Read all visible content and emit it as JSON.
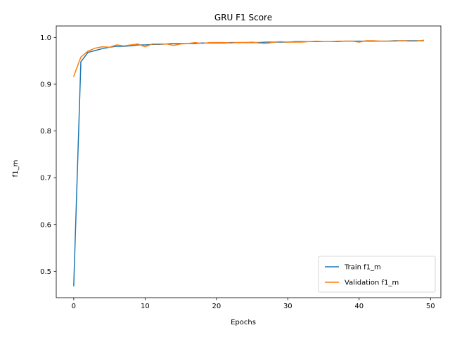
{
  "chart_data": {
    "type": "line",
    "title": "GRU F1 Score",
    "xlabel": "Epochs",
    "ylabel": "f1_m",
    "xlim": [
      -2.45,
      51.45
    ],
    "ylim": [
      0.4435,
      1.0245
    ],
    "xticks": [
      0,
      10,
      20,
      30,
      40,
      50
    ],
    "yticks": [
      0.5,
      0.6,
      0.7,
      0.8,
      0.9,
      1.0
    ],
    "ytick_labels": [
      "0.5",
      "0.6",
      "0.7",
      "0.8",
      "0.9",
      "1.0"
    ],
    "grid": false,
    "legend": "lower-right",
    "x": [
      0,
      1,
      2,
      3,
      4,
      5,
      6,
      7,
      8,
      9,
      10,
      11,
      12,
      13,
      14,
      15,
      16,
      17,
      18,
      19,
      20,
      21,
      22,
      23,
      24,
      25,
      26,
      27,
      28,
      29,
      30,
      31,
      32,
      33,
      34,
      35,
      36,
      37,
      38,
      39,
      40,
      41,
      42,
      43,
      44,
      45,
      46,
      47,
      48,
      49
    ],
    "series": [
      {
        "name": "Train f1_m",
        "color": "#1f77b4",
        "values": [
          0.469,
          0.948,
          0.968,
          0.972,
          0.976,
          0.979,
          0.981,
          0.981,
          0.982,
          0.984,
          0.984,
          0.985,
          0.985,
          0.986,
          0.987,
          0.987,
          0.987,
          0.987,
          0.988,
          0.988,
          0.988,
          0.988,
          0.989,
          0.989,
          0.989,
          0.989,
          0.989,
          0.99,
          0.99,
          0.99,
          0.99,
          0.991,
          0.991,
          0.991,
          0.991,
          0.991,
          0.991,
          0.991,
          0.992,
          0.992,
          0.992,
          0.992,
          0.992,
          0.992,
          0.992,
          0.993,
          0.993,
          0.993,
          0.993,
          0.993
        ]
      },
      {
        "name": "Validation f1_m",
        "color": "#ff7f0e",
        "values": [
          0.917,
          0.958,
          0.971,
          0.977,
          0.98,
          0.979,
          0.984,
          0.982,
          0.984,
          0.986,
          0.98,
          0.986,
          0.986,
          0.986,
          0.983,
          0.986,
          0.987,
          0.989,
          0.987,
          0.989,
          0.989,
          0.989,
          0.988,
          0.989,
          0.989,
          0.99,
          0.988,
          0.987,
          0.99,
          0.991,
          0.99,
          0.99,
          0.99,
          0.991,
          0.992,
          0.991,
          0.991,
          0.992,
          0.992,
          0.992,
          0.99,
          0.993,
          0.993,
          0.992,
          0.992,
          0.992,
          0.993,
          0.992,
          0.992,
          0.994
        ]
      }
    ]
  }
}
